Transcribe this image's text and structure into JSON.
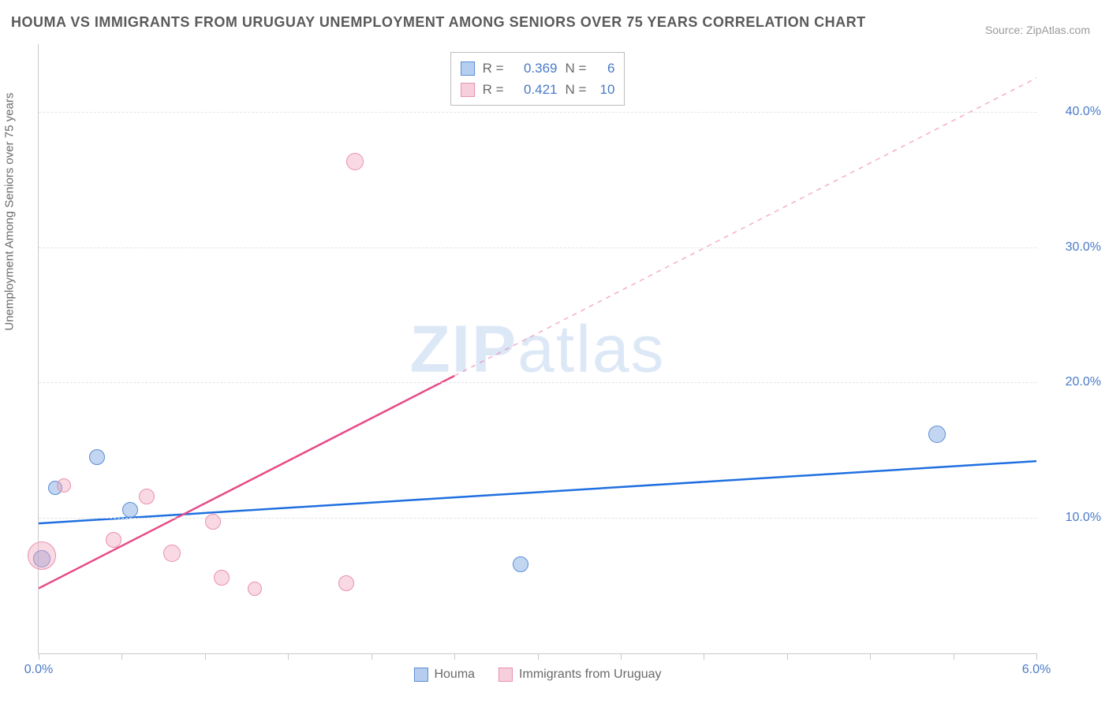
{
  "title": "HOUMA VS IMMIGRANTS FROM URUGUAY UNEMPLOYMENT AMONG SENIORS OVER 75 YEARS CORRELATION CHART",
  "source_label": "Source: ",
  "source_name": "ZipAtlas.com",
  "y_axis_label": "Unemployment Among Seniors over 75 years",
  "watermark_bold": "ZIP",
  "watermark_rest": "atlas",
  "chart": {
    "type": "scatter",
    "xlim": [
      0.0,
      6.0
    ],
    "ylim": [
      0.0,
      45.0
    ],
    "y_ticks": [
      10.0,
      20.0,
      30.0,
      40.0
    ],
    "y_tick_labels": [
      "10.0%",
      "20.0%",
      "30.0%",
      "40.0%"
    ],
    "x_ticks": [
      0.0,
      0.5,
      1.0,
      1.5,
      2.0,
      2.5,
      3.0,
      3.5,
      4.0,
      4.5,
      5.0,
      5.5,
      6.0
    ],
    "x_tick_labels_shown": {
      "0.0": "0.0%",
      "6.0": "6.0%"
    },
    "grid_color": "#e4e4e4",
    "border_color": "#c8c8c8",
    "background_color": "#ffffff",
    "series": [
      {
        "name": "Houma",
        "color_fill": "rgba(120,165,225,0.45)",
        "color_stroke": "#5a8dd6",
        "trend_color": "#1f6fe0",
        "R": 0.369,
        "N": 6,
        "points": [
          {
            "x": 0.02,
            "y": 7.0,
            "r": 11
          },
          {
            "x": 0.1,
            "y": 12.2,
            "r": 9
          },
          {
            "x": 0.35,
            "y": 14.5,
            "r": 10
          },
          {
            "x": 0.55,
            "y": 10.6,
            "r": 10
          },
          {
            "x": 2.9,
            "y": 6.6,
            "r": 10
          },
          {
            "x": 5.4,
            "y": 16.2,
            "r": 11
          }
        ],
        "trend_line": {
          "x1": 0.0,
          "y1": 9.6,
          "x2": 6.0,
          "y2": 14.2
        }
      },
      {
        "name": "Immigrants from Uruguay",
        "color_fill": "rgba(240,160,185,0.4)",
        "color_stroke": "#e891ae",
        "trend_color": "#e74b88",
        "R": 0.421,
        "N": 10,
        "points": [
          {
            "x": 0.02,
            "y": 7.2,
            "r": 18
          },
          {
            "x": 0.15,
            "y": 12.4,
            "r": 9
          },
          {
            "x": 0.45,
            "y": 8.4,
            "r": 10
          },
          {
            "x": 0.65,
            "y": 11.6,
            "r": 10
          },
          {
            "x": 0.8,
            "y": 7.4,
            "r": 11
          },
          {
            "x": 1.05,
            "y": 9.7,
            "r": 10
          },
          {
            "x": 1.1,
            "y": 5.6,
            "r": 10
          },
          {
            "x": 1.3,
            "y": 4.8,
            "r": 9
          },
          {
            "x": 1.85,
            "y": 5.2,
            "r": 10
          },
          {
            "x": 1.9,
            "y": 36.3,
            "r": 11
          }
        ],
        "trend_line_solid": {
          "x1": 0.0,
          "y1": 4.8,
          "x2": 2.5,
          "y2": 20.5
        },
        "trend_line_dash": {
          "x1": 2.5,
          "y1": 20.5,
          "x2": 6.0,
          "y2": 42.5
        }
      }
    ],
    "legend_bottom": [
      "Houma",
      "Immigrants from Uruguay"
    ],
    "stats_legend": [
      {
        "series": 0,
        "R_label": "R =",
        "N_label": "N =",
        "R": "0.369",
        "N": "6"
      },
      {
        "series": 1,
        "R_label": "R =",
        "N_label": "N =",
        "R": "0.421",
        "N": "10"
      }
    ]
  }
}
